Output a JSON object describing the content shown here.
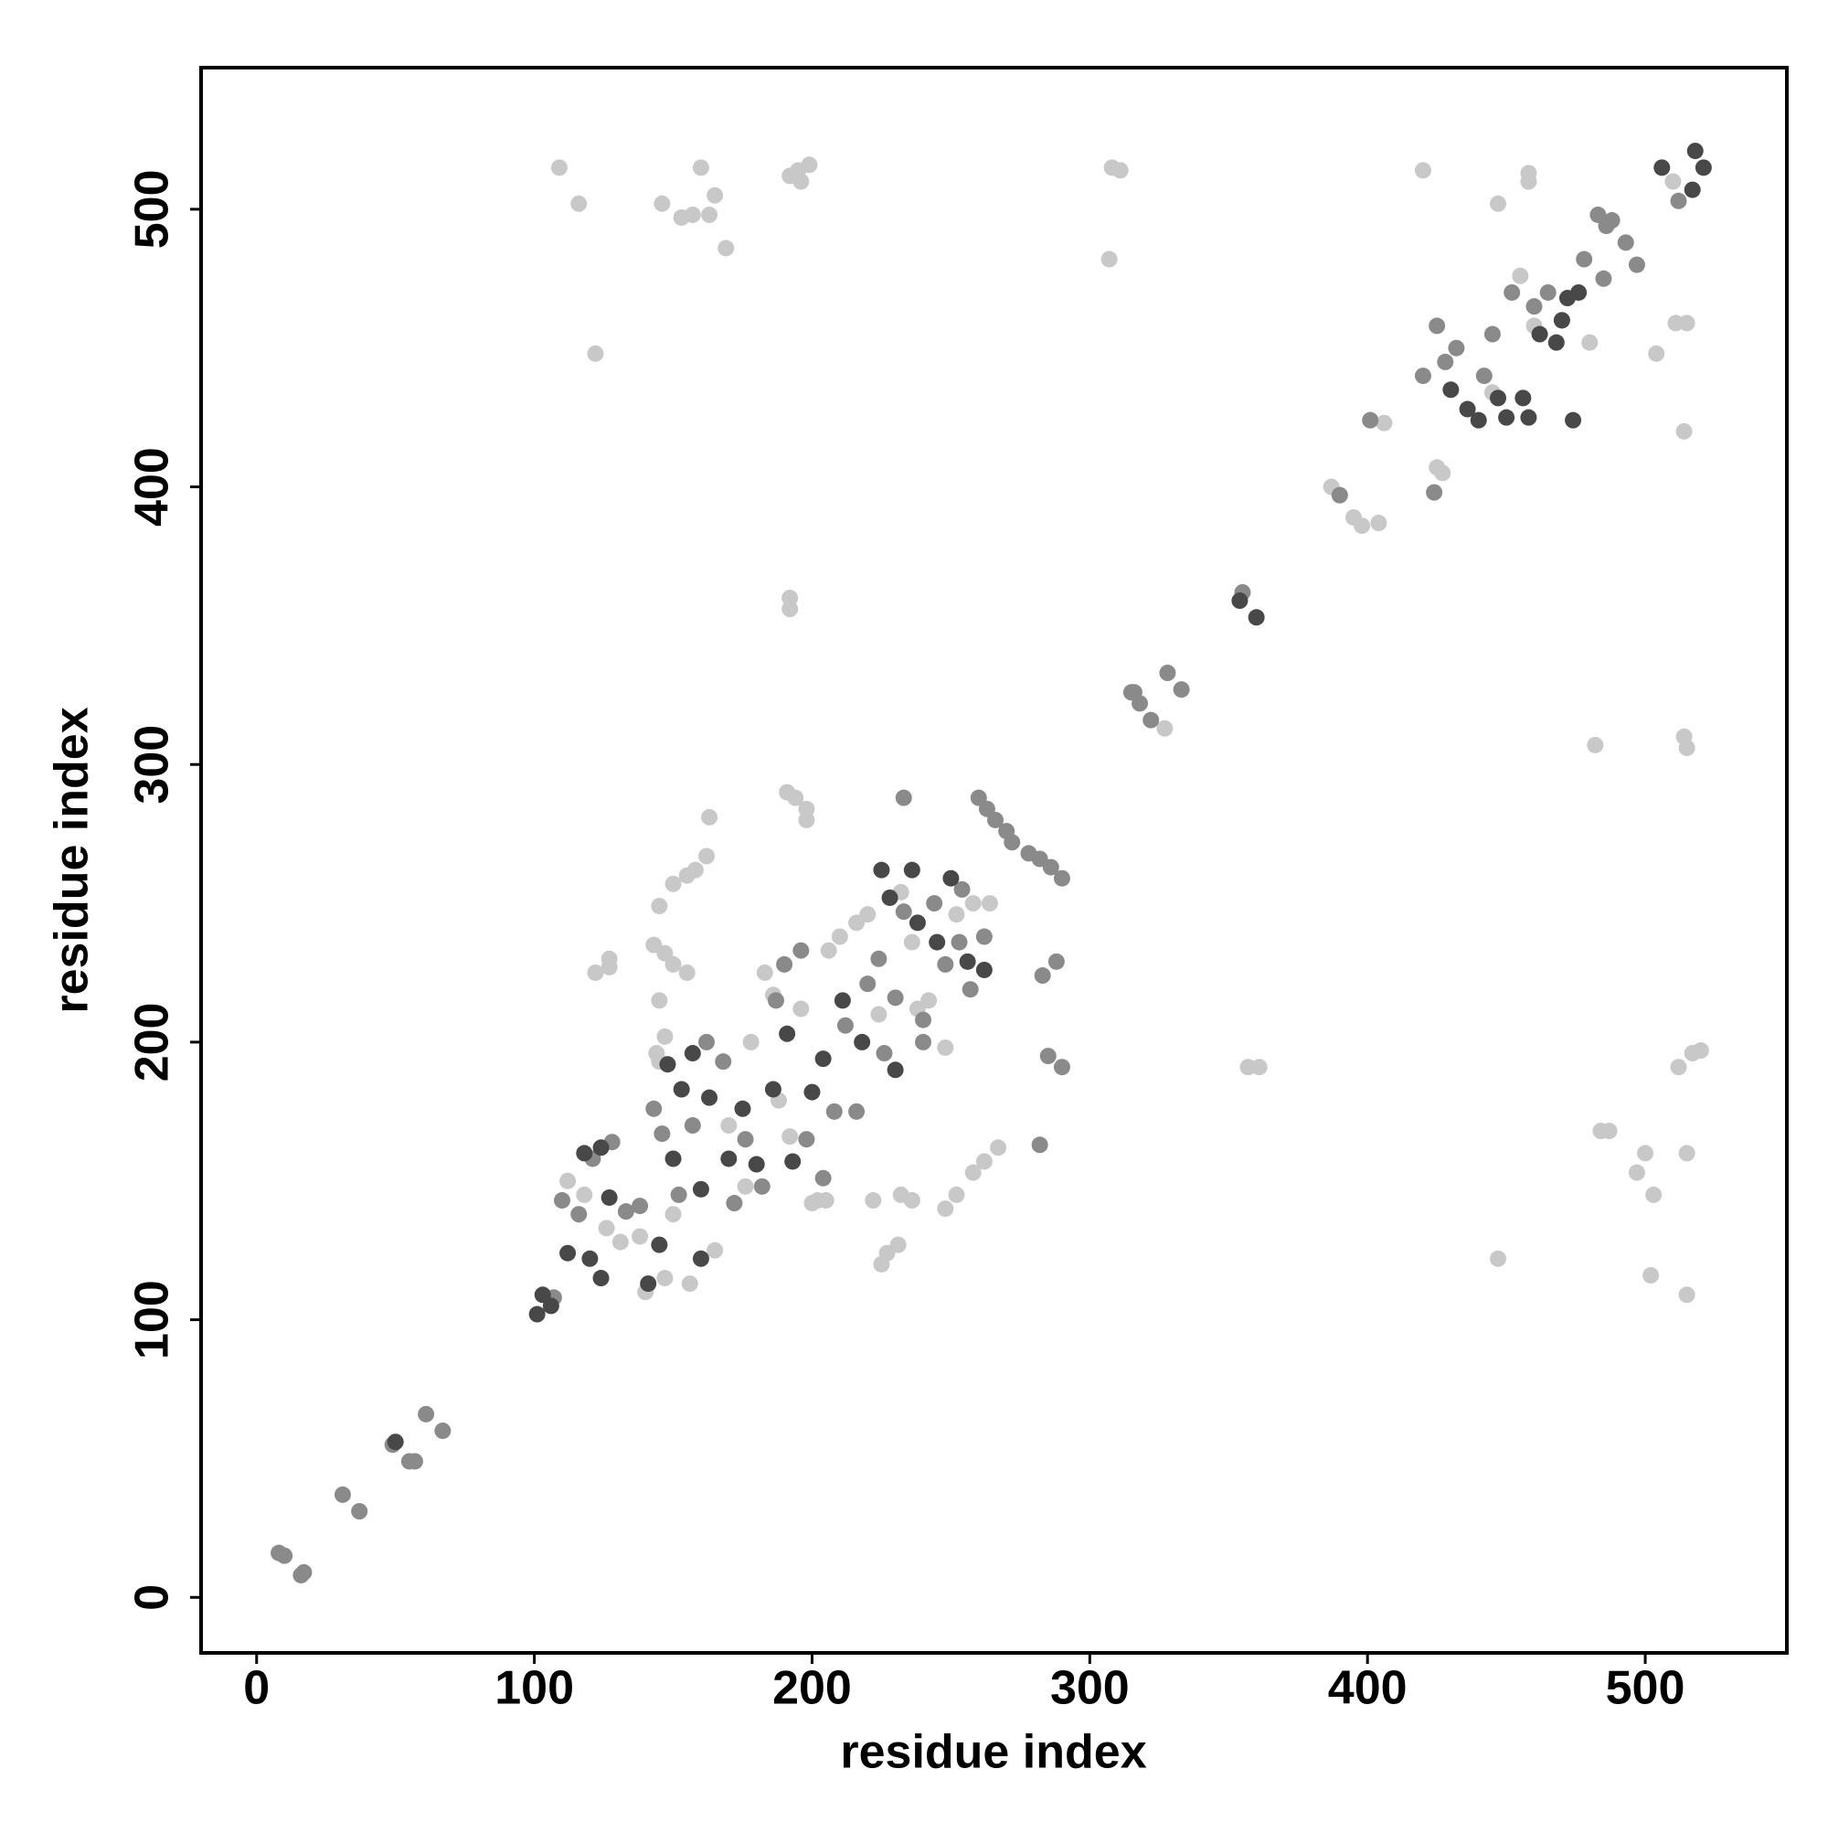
{
  "chart_data": {
    "type": "scatter",
    "x_label": "residue index",
    "y_label": "residue index",
    "xlim": [
      -20,
      551
    ],
    "ylim": [
      -20,
      551
    ],
    "xticks": [
      0,
      100,
      200,
      300,
      400,
      500
    ],
    "yticks": [
      0,
      100,
      200,
      300,
      400,
      500
    ],
    "series": [
      {
        "color": "#c8c8c8",
        "x": [
          109,
          116,
          122,
          146,
          153,
          157,
          160,
          163,
          165,
          169,
          192,
          195,
          199,
          196,
          308,
          311,
          307,
          420,
          447,
          458,
          458,
          192,
          192,
          191,
          194,
          198,
          198,
          163,
          162,
          158,
          155,
          150,
          145,
          122,
          127,
          127,
          143,
          147,
          150,
          155,
          145,
          147,
          144,
          145,
          357,
          361,
          225,
          231,
          227,
          232,
          236,
          248,
          252,
          258,
          262,
          267,
          222,
          202,
          327,
          387,
          390,
          395,
          398,
          401,
          406,
          404,
          425,
          427,
          511,
          515,
          504,
          514,
          482,
          514,
          515,
          512,
          517,
          520,
          484,
          487,
          497,
          500,
          503,
          515,
          502,
          515,
          447,
          112,
          118,
          126,
          131,
          140,
          147,
          150,
          156,
          165,
          170,
          176,
          183,
          186,
          192,
          200,
          206,
          210,
          216,
          220,
          224,
          232,
          238,
          242,
          248,
          252,
          258,
          264,
          236,
          196,
          188,
          178,
          205,
          138,
          510,
          445,
          455,
          460,
          480
        ],
        "values": [
          515,
          502,
          448,
          502,
          497,
          498,
          515,
          498,
          505,
          486,
          512,
          514,
          516,
          510,
          515,
          514,
          482,
          514,
          502,
          513,
          510,
          360,
          356,
          290,
          288,
          284,
          280,
          281,
          267,
          262,
          260,
          257,
          249,
          225,
          230,
          227,
          235,
          232,
          228,
          225,
          215,
          202,
          196,
          193,
          191,
          191,
          120,
          127,
          124,
          145,
          143,
          140,
          145,
          153,
          157,
          162,
          143,
          143,
          313,
          400,
          397,
          389,
          386,
          424,
          423,
          387,
          407,
          405,
          459,
          459,
          448,
          420,
          307,
          310,
          306,
          191,
          196,
          197,
          168,
          168,
          153,
          160,
          145,
          160,
          116,
          109,
          122,
          150,
          145,
          133,
          128,
          110,
          115,
          138,
          113,
          125,
          170,
          148,
          225,
          217,
          166,
          142,
          233,
          238,
          243,
          246,
          210,
          254,
          212,
          215,
          198,
          246,
          250,
          250,
          236,
          212,
          179,
          200,
          143,
          130,
          510,
          434,
          476,
          458,
          452
        ]
      },
      {
        "color": "#8a8a8a",
        "x": [
          8,
          10,
          16,
          17,
          31,
          37,
          49,
          55,
          57,
          61,
          67,
          107,
          233,
          260,
          263,
          266,
          270,
          272,
          278,
          282,
          286,
          290,
          288,
          283,
          290,
          285,
          282,
          316,
          318,
          322,
          328,
          333,
          315,
          355,
          390,
          401,
          424,
          420,
          425,
          428,
          432,
          442,
          445,
          452,
          460,
          465,
          470,
          478,
          483,
          486,
          488,
          493,
          497,
          485,
          512,
          110,
          116,
          121,
          128,
          133,
          138,
          143,
          146,
          152,
          157,
          162,
          168,
          172,
          176,
          182,
          187,
          190,
          196,
          198,
          204,
          208,
          212,
          220,
          224,
          230,
          233,
          240,
          244,
          248,
          253,
          257,
          262,
          216,
          226,
          240,
          254
        ],
        "values": [
          16,
          15,
          8,
          9,
          37,
          31,
          55,
          49,
          49,
          66,
          60,
          108,
          288,
          288,
          284,
          280,
          276,
          272,
          268,
          266,
          263,
          259,
          229,
          224,
          191,
          195,
          163,
          326,
          322,
          316,
          333,
          327,
          326,
          362,
          397,
          424,
          398,
          440,
          458,
          445,
          450,
          440,
          455,
          470,
          465,
          470,
          460,
          482,
          498,
          494,
          496,
          488,
          480,
          475,
          503,
          143,
          138,
          158,
          164,
          139,
          141,
          176,
          167,
          145,
          170,
          200,
          193,
          142,
          165,
          148,
          215,
          228,
          233,
          165,
          151,
          175,
          206,
          221,
          230,
          216,
          247,
          208,
          250,
          228,
          236,
          219,
          238,
          175,
          196,
          200,
          255
        ]
      },
      {
        "color": "#484848",
        "x": [
          50,
          101,
          103,
          106,
          354,
          360,
          430,
          436,
          440,
          447,
          450,
          456,
          458,
          462,
          468,
          470,
          472,
          474,
          476,
          506,
          518,
          521,
          517,
          112,
          118,
          124,
          127,
          141,
          145,
          150,
          148,
          153,
          157,
          160,
          163,
          170,
          175,
          180,
          186,
          191,
          193,
          200,
          204,
          211,
          218,
          225,
          228,
          236,
          238,
          245,
          250,
          256,
          262,
          230,
          160,
          124,
          120
        ],
        "values": [
          56,
          102,
          109,
          105,
          359,
          353,
          435,
          428,
          424,
          432,
          425,
          432,
          425,
          455,
          452,
          460,
          468,
          424,
          470,
          515,
          521,
          515,
          507,
          124,
          160,
          115,
          144,
          113,
          127,
          158,
          192,
          183,
          196,
          147,
          180,
          158,
          176,
          156,
          183,
          203,
          157,
          182,
          194,
          215,
          200,
          262,
          252,
          262,
          243,
          236,
          259,
          229,
          226,
          190,
          122,
          162,
          122
        ]
      }
    ]
  }
}
